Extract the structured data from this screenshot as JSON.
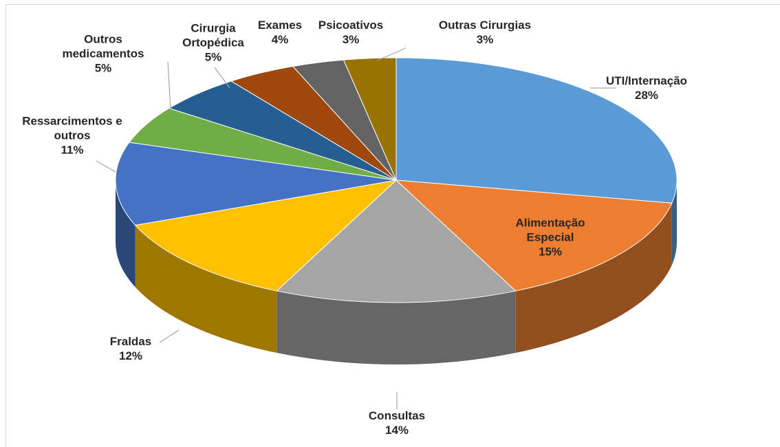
{
  "chart_data": {
    "type": "pie",
    "categories": [
      "UTI/Internação",
      "Alimentação Especial",
      "Consultas",
      "Fraldas",
      "Ressarcimentos e outros",
      "Outros medicamentos",
      "Cirurgia Ortopédica",
      "Exames",
      "Psicoativos",
      "Outras Cirurgias"
    ],
    "values": [
      28,
      15,
      14,
      12,
      11,
      5,
      5,
      4,
      3,
      3
    ],
    "value_labels": [
      "28%",
      "15%",
      "14%",
      "12%",
      "11%",
      "5%",
      "5%",
      "4%",
      "3%",
      "3%"
    ],
    "colors": [
      "#5b9bd5",
      "#ed7d31",
      "#a5a5a5",
      "#ffc000",
      "#4472c4",
      "#70ad47",
      "#255e91",
      "#9e480e",
      "#636363",
      "#997300"
    ]
  }
}
